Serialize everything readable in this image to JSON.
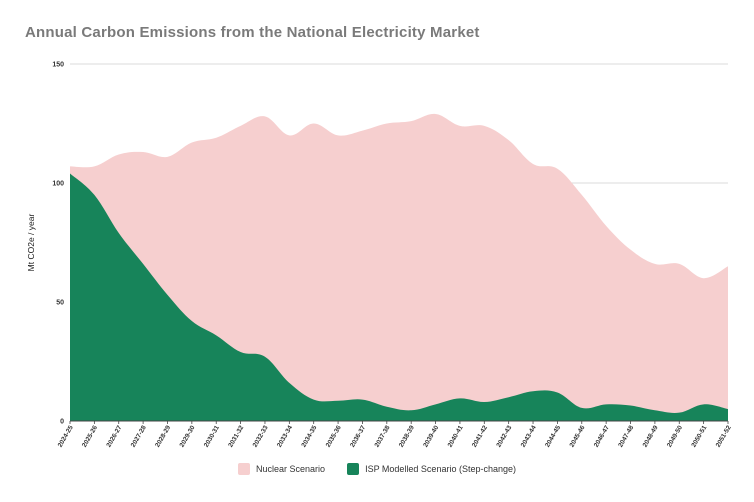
{
  "chart_data": {
    "type": "area",
    "title": "Annual Carbon Emissions from the National Electricity Market",
    "xlabel": "",
    "ylabel": "Mt CO2e / year",
    "ylim": [
      0,
      150
    ],
    "yticks": [
      "0",
      "50",
      "100",
      "150"
    ],
    "grid": true,
    "legend_position": "bottom",
    "categories": [
      "2024-25",
      "2025-26",
      "2026-27",
      "2027-28",
      "2028-29",
      "2029-30",
      "2030-31",
      "2031-32",
      "2032-33",
      "2033-34",
      "2034-35",
      "2035-36",
      "2036-37",
      "2037-38",
      "2038-39",
      "2039-40",
      "2040-41",
      "2041-42",
      "2042-43",
      "2043-44",
      "2044-45",
      "2045-46",
      "2046-47",
      "2047-48",
      "2048-49",
      "2049-50",
      "2050-51",
      "2051-52"
    ],
    "series": [
      {
        "name": "Nuclear Scenario",
        "color": "#f6cfcf",
        "values": [
          107,
          107,
          112,
          113,
          111,
          117,
          119,
          124,
          128,
          120,
          125,
          120,
          122,
          125,
          126,
          129,
          124,
          124,
          118,
          108,
          106,
          95,
          82,
          72,
          66,
          66,
          60,
          65
        ]
      },
      {
        "name": "ISP Modelled Scenario (Step-change)",
        "color": "#17845a",
        "values": [
          104,
          95,
          79,
          66,
          53,
          42,
          36,
          29,
          27,
          16,
          9,
          8.5,
          9,
          6,
          4.5,
          7,
          9.5,
          8,
          10,
          12.5,
          12,
          5.5,
          7,
          6.5,
          4.5,
          3.5,
          7,
          5
        ]
      }
    ]
  }
}
